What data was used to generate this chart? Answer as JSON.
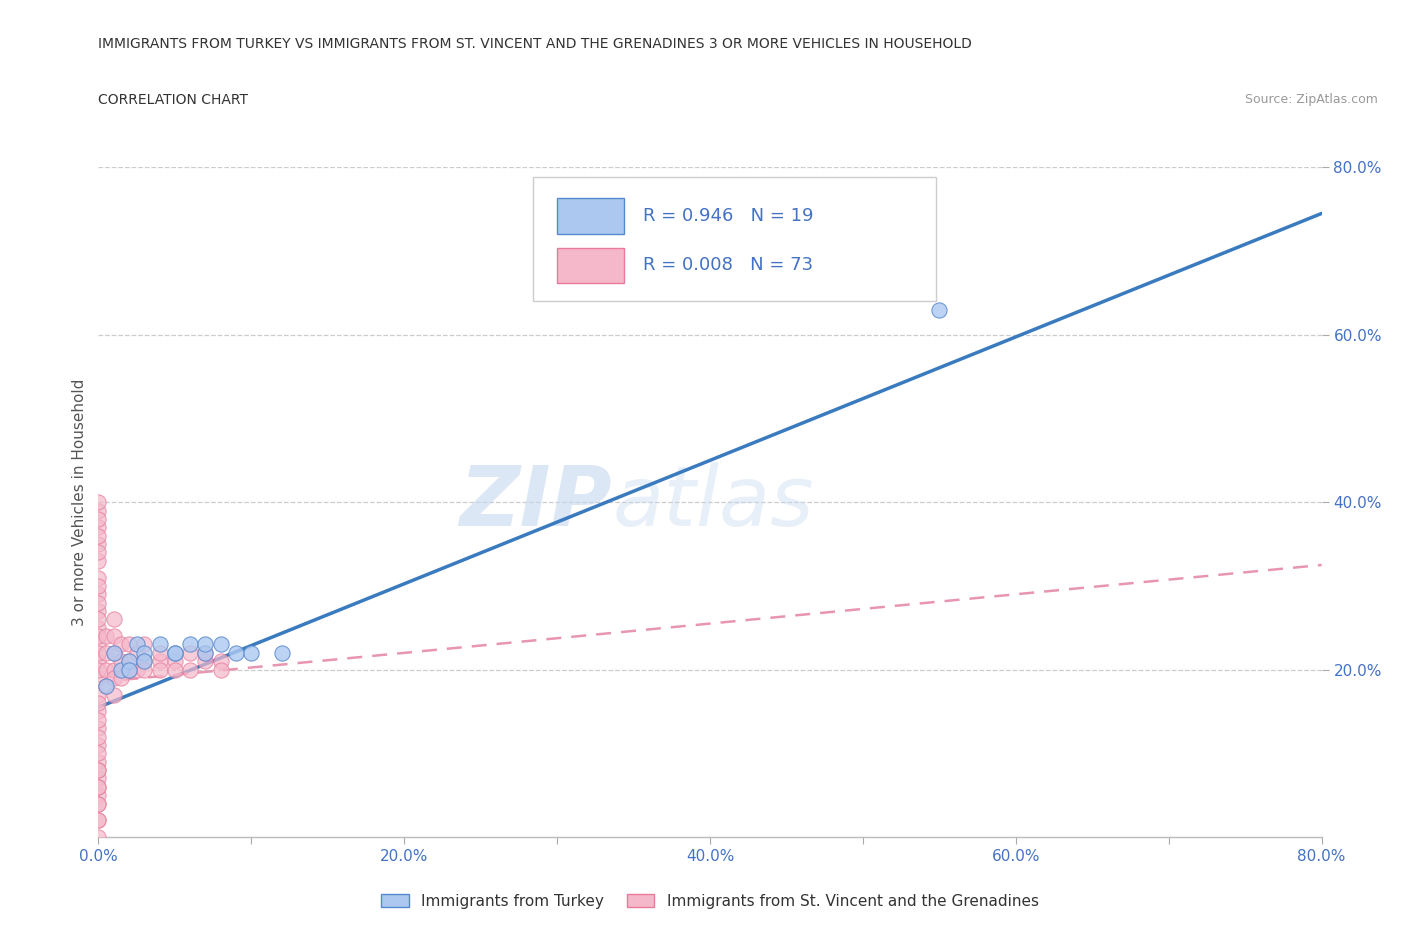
{
  "title_line1": "IMMIGRANTS FROM TURKEY VS IMMIGRANTS FROM ST. VINCENT AND THE GRENADINES 3 OR MORE VEHICLES IN HOUSEHOLD",
  "title_line2": "CORRELATION CHART",
  "source_text": "Source: ZipAtlas.com",
  "ylabel": "3 or more Vehicles in Household",
  "xmin": 0.0,
  "xmax": 0.8,
  "ymin": 0.0,
  "ymax": 0.8,
  "xtick_labels": [
    "0.0%",
    "",
    "20.0%",
    "",
    "40.0%",
    "",
    "60.0%",
    "",
    "80.0%"
  ],
  "xtick_vals": [
    0.0,
    0.1,
    0.2,
    0.3,
    0.4,
    0.5,
    0.6,
    0.7,
    0.8
  ],
  "ytick_labels": [
    "20.0%",
    "40.0%",
    "60.0%",
    "80.0%"
  ],
  "ytick_vals": [
    0.2,
    0.4,
    0.6,
    0.8
  ],
  "watermark_zip": "ZIP",
  "watermark_atlas": "atlas",
  "legend_R1": "R = 0.946",
  "legend_N1": "N = 19",
  "legend_R2": "R = 0.008",
  "legend_N2": "N = 73",
  "color_turkey": "#adc8f0",
  "color_stv": "#f5b8cb",
  "color_turkey_edge": "#5588cc",
  "color_stv_edge": "#e87a9a",
  "color_turkey_line": "#3a7bbf",
  "color_stv_line": "#e896b0",
  "color_text_blue": "#4472c4",
  "color_axis_label": "#4472c4",
  "turkey_scatter_x": [
    0.005,
    0.01,
    0.015,
    0.02,
    0.025,
    0.03,
    0.04,
    0.05,
    0.06,
    0.07,
    0.08,
    0.09,
    0.1,
    0.12,
    0.55,
    0.02,
    0.03,
    0.05,
    0.07
  ],
  "turkey_scatter_y": [
    0.18,
    0.22,
    0.2,
    0.21,
    0.23,
    0.22,
    0.23,
    0.22,
    0.23,
    0.22,
    0.23,
    0.22,
    0.22,
    0.22,
    0.63,
    0.2,
    0.21,
    0.22,
    0.23
  ],
  "stv_scatter_x": [
    0.0,
    0.0,
    0.0,
    0.0,
    0.0,
    0.0,
    0.0,
    0.0,
    0.0,
    0.0,
    0.0,
    0.0,
    0.0,
    0.0,
    0.0,
    0.0,
    0.0,
    0.0,
    0.0,
    0.0,
    0.005,
    0.005,
    0.005,
    0.005,
    0.01,
    0.01,
    0.01,
    0.01,
    0.01,
    0.01,
    0.015,
    0.015,
    0.015,
    0.02,
    0.02,
    0.02,
    0.025,
    0.025,
    0.03,
    0.03,
    0.03,
    0.04,
    0.04,
    0.04,
    0.05,
    0.05,
    0.06,
    0.06,
    0.07,
    0.07,
    0.08,
    0.08,
    0.0,
    0.0,
    0.0,
    0.0,
    0.0,
    0.0,
    0.0,
    0.0,
    0.0,
    0.0,
    0.0,
    0.0,
    0.0,
    0.0,
    0.0,
    0.0,
    0.0,
    0.0,
    0.0,
    0.0,
    0.0
  ],
  "stv_scatter_y": [
    0.15,
    0.17,
    0.19,
    0.21,
    0.23,
    0.25,
    0.27,
    0.29,
    0.31,
    0.33,
    0.35,
    0.37,
    0.39,
    0.34,
    0.3,
    0.28,
    0.26,
    0.24,
    0.22,
    0.2,
    0.22,
    0.24,
    0.2,
    0.18,
    0.2,
    0.22,
    0.24,
    0.26,
    0.19,
    0.17,
    0.21,
    0.23,
    0.19,
    0.21,
    0.23,
    0.2,
    0.2,
    0.22,
    0.21,
    0.23,
    0.2,
    0.21,
    0.22,
    0.2,
    0.21,
    0.2,
    0.22,
    0.2,
    0.21,
    0.22,
    0.21,
    0.2,
    0.05,
    0.07,
    0.09,
    0.11,
    0.13,
    0.02,
    0.04,
    0.06,
    0.08,
    0.16,
    0.14,
    0.12,
    0.1,
    0.08,
    0.06,
    0.04,
    0.02,
    0.0,
    0.38,
    0.4,
    0.36
  ],
  "turkey_line_x": [
    0.0,
    0.8
  ],
  "turkey_line_y": [
    0.155,
    0.745
  ],
  "stv_line_x": [
    0.0,
    0.8
  ],
  "stv_line_y": [
    0.185,
    0.325
  ],
  "grid_color": "#cccccc",
  "background_color": "#ffffff"
}
